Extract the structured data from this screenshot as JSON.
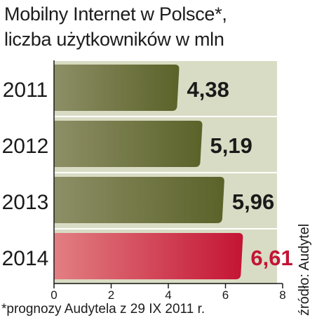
{
  "title_line1": "Mobilny Internet w Polsce*,",
  "title_line2": "liczba użytkowników w mln",
  "source": "źródło: Audytel",
  "footnote": "*prognozy Audytela z 29  IX 2011 r.",
  "colors": {
    "band": "#d9dcc4",
    "bar_dark": "#5b6229",
    "bar_light": "#8d8f66",
    "highlight_dark": "#c41434",
    "highlight_light": "#e27f82",
    "value_text": "#1a1a1a",
    "highlight_text": "#c41434"
  },
  "chart_data": {
    "type": "bar",
    "orientation": "horizontal",
    "categories": [
      "2011",
      "2012",
      "2013",
      "2014"
    ],
    "values": [
      4.38,
      5.19,
      5.96,
      6.61
    ],
    "value_labels": [
      "4,38",
      "5,19",
      "5,96",
      "6,61"
    ],
    "highlight_index": 3,
    "xlim": [
      0,
      8
    ],
    "xticks": [
      "0",
      "2",
      "4",
      "6",
      "8"
    ],
    "xlabel": "",
    "ylabel": ""
  }
}
